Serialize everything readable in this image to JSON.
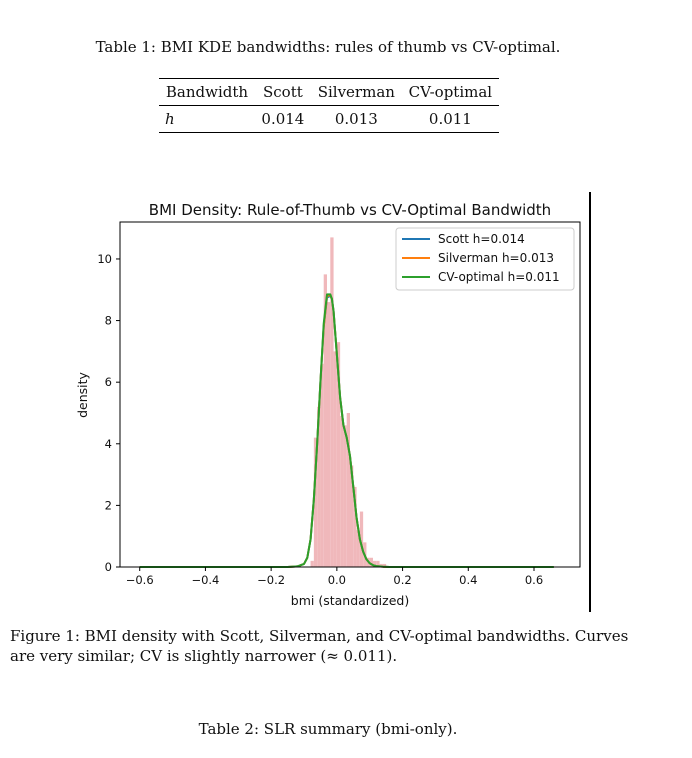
{
  "table1": {
    "caption": "Table 1: BMI KDE bandwidths: rules of thumb vs CV-optimal.",
    "headers": [
      "Bandwidth",
      "Scott",
      "Silverman",
      "CV-optimal"
    ],
    "row": {
      "symbol": "h",
      "values": [
        "0.014",
        "0.013",
        "0.011"
      ]
    }
  },
  "figure": {
    "caption": "Figure 1: BMI density with Scott, Silverman, and CV-optimal bandwidths. Curves are very similar; CV is slightly narrower (≈ 0.011)."
  },
  "table2": {
    "caption": "Table 2: SLR summary (bmi-only)."
  },
  "chart_data": {
    "type": "line",
    "title": "BMI Density: Rule-of-Thumb vs CV-Optimal Bandwidth",
    "xlabel": "bmi (standardized)",
    "ylabel": "density",
    "xlim": [
      -0.66,
      0.74
    ],
    "ylim": [
      0,
      11.2
    ],
    "xticks": [
      "−0.6",
      "−0.4",
      "−0.2",
      "0.0",
      "0.2",
      "0.4",
      "0.6"
    ],
    "xtick_values": [
      -0.6,
      -0.4,
      -0.2,
      0.0,
      0.2,
      0.4,
      0.6
    ],
    "yticks": [
      "0",
      "2",
      "4",
      "6",
      "8",
      "10"
    ],
    "ytick_values": [
      0,
      2,
      4,
      6,
      8,
      10
    ],
    "grid": false,
    "legend_position": "top-right",
    "histogram": {
      "color": "#f0b8bb",
      "bin_width": 0.01,
      "bins": [
        {
          "x": -0.08,
          "h": 0.2
        },
        {
          "x": -0.07,
          "h": 4.2
        },
        {
          "x": -0.06,
          "h": 5.2
        },
        {
          "x": -0.05,
          "h": 6.6
        },
        {
          "x": -0.04,
          "h": 9.5
        },
        {
          "x": -0.03,
          "h": 8.6
        },
        {
          "x": -0.02,
          "h": 10.7
        },
        {
          "x": -0.01,
          "h": 7.0
        },
        {
          "x": 0.0,
          "h": 7.3
        },
        {
          "x": 0.01,
          "h": 4.9
        },
        {
          "x": 0.02,
          "h": 4.6
        },
        {
          "x": 0.03,
          "h": 5.0
        },
        {
          "x": 0.04,
          "h": 3.3
        },
        {
          "x": 0.05,
          "h": 2.6
        },
        {
          "x": 0.06,
          "h": 1.2
        },
        {
          "x": 0.07,
          "h": 1.8
        },
        {
          "x": 0.08,
          "h": 0.8
        },
        {
          "x": 0.09,
          "h": 0.3
        },
        {
          "x": 0.1,
          "h": 0.3
        },
        {
          "x": 0.11,
          "h": 0.2
        },
        {
          "x": 0.12,
          "h": 0.2
        },
        {
          "x": 0.13,
          "h": 0.1
        },
        {
          "x": 0.14,
          "h": 0.1
        }
      ]
    },
    "x": [
      -0.6,
      -0.5,
      -0.4,
      -0.3,
      -0.15,
      -0.12,
      -0.1,
      -0.09,
      -0.08,
      -0.07,
      -0.06,
      -0.05,
      -0.04,
      -0.03,
      -0.02,
      -0.015,
      -0.01,
      0.0,
      0.01,
      0.02,
      0.03,
      0.04,
      0.05,
      0.06,
      0.07,
      0.08,
      0.09,
      0.1,
      0.11,
      0.12,
      0.14,
      0.16,
      0.2,
      0.3,
      0.4,
      0.5,
      0.6,
      0.66
    ],
    "series": [
      {
        "name": "Scott h=0.014",
        "color": "#1f77b4",
        "values": [
          0,
          0,
          0,
          0,
          0,
          0.02,
          0.1,
          0.3,
          0.9,
          2.2,
          4.0,
          6.0,
          7.8,
          8.75,
          8.8,
          8.7,
          8.3,
          6.9,
          5.5,
          4.6,
          4.2,
          3.6,
          2.6,
          1.6,
          0.9,
          0.5,
          0.25,
          0.12,
          0.06,
          0.03,
          0.01,
          0,
          0,
          0,
          0,
          0,
          0,
          0
        ]
      },
      {
        "name": "Silverman h=0.013",
        "color": "#ff7f0e",
        "values": [
          0,
          0,
          0,
          0,
          0,
          0.02,
          0.1,
          0.3,
          0.9,
          2.2,
          4.0,
          6.0,
          7.8,
          8.8,
          8.82,
          8.7,
          8.3,
          6.9,
          5.5,
          4.6,
          4.2,
          3.6,
          2.6,
          1.6,
          0.9,
          0.5,
          0.25,
          0.12,
          0.06,
          0.03,
          0.01,
          0,
          0,
          0,
          0,
          0,
          0,
          0
        ]
      },
      {
        "name": "CV-optimal h=0.011",
        "color": "#2ca02c",
        "values": [
          0,
          0,
          0,
          0,
          0,
          0.02,
          0.1,
          0.3,
          0.9,
          2.2,
          4.0,
          6.0,
          7.9,
          8.85,
          8.85,
          8.7,
          8.3,
          6.9,
          5.5,
          4.6,
          4.2,
          3.6,
          2.6,
          1.6,
          0.9,
          0.5,
          0.25,
          0.12,
          0.06,
          0.03,
          0.01,
          0,
          0,
          0,
          0,
          0,
          0,
          0
        ]
      }
    ]
  }
}
